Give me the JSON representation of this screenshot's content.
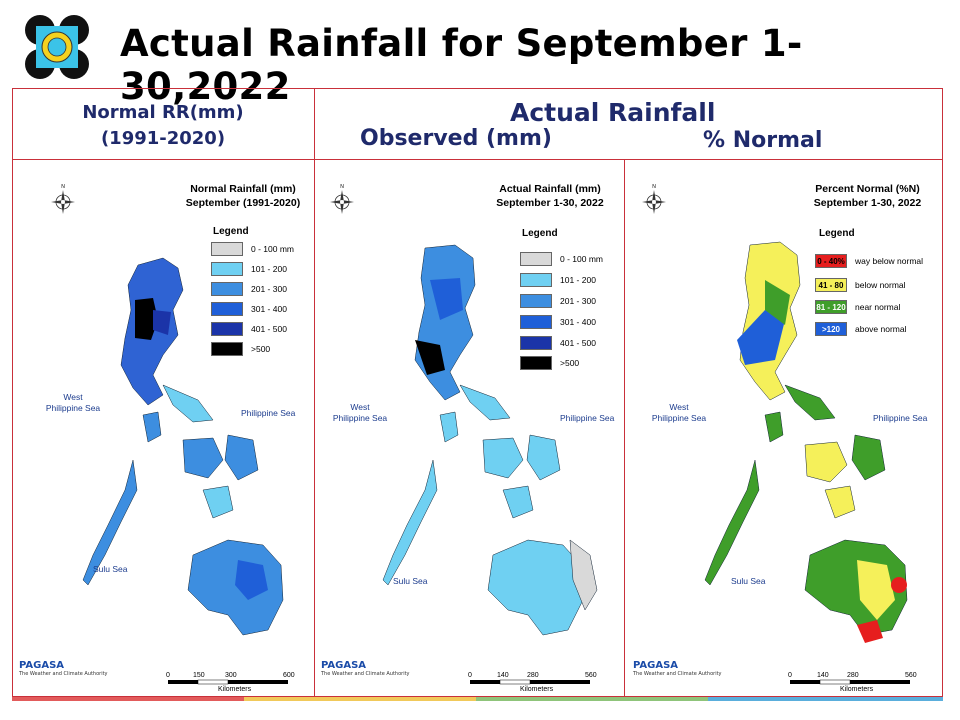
{
  "title": "Actual Rainfall for September 1-30,2022",
  "headers": {
    "normal_line1": "Normal RR(mm)",
    "normal_line2": "(1991-2020)",
    "actual": "Actual Rainfall",
    "observed": "Observed (mm)",
    "percent": "% Normal"
  },
  "maps": [
    {
      "title_line1": "Normal Rainfall (mm)",
      "title_line2": "September (1991-2020)",
      "legend_title": "Legend",
      "legend": [
        {
          "label": "0 - 100 mm",
          "color": "#d9d9d9"
        },
        {
          "label": "101 - 200",
          "color": "#6fd0f2"
        },
        {
          "label": "201 - 300",
          "color": "#3d8ee0"
        },
        {
          "label": "301 - 400",
          "color": "#1f5fd8"
        },
        {
          "label": "401 - 500",
          "color": "#1b34a8"
        },
        {
          "label": ">500",
          "color": "#000000"
        }
      ],
      "sea_west_line1": "West",
      "sea_west_line2": "Philippine Sea",
      "sea_east": "Philippine Sea",
      "sea_south": "Sulu Sea",
      "scale_ticks": [
        "0",
        "150",
        "300",
        "600"
      ],
      "scale_unit": "Kilometers"
    },
    {
      "title_line1": "Actual Rainfall (mm)",
      "title_line2": "September 1-30, 2022",
      "legend_title": "Legend",
      "legend": [
        {
          "label": "0 - 100 mm",
          "color": "#d9d9d9"
        },
        {
          "label": "101 - 200",
          "color": "#6fd0f2"
        },
        {
          "label": "201 - 300",
          "color": "#3d8ee0"
        },
        {
          "label": "301 - 400",
          "color": "#1f5fd8"
        },
        {
          "label": "401 - 500",
          "color": "#1b34a8"
        },
        {
          "label": ">500",
          "color": "#000000"
        }
      ],
      "sea_west_line1": "West",
      "sea_west_line2": "Philippine Sea",
      "sea_east": "Philippine Sea",
      "sea_south": "Sulu Sea",
      "scale_ticks": [
        "0",
        "140",
        "280",
        "560"
      ],
      "scale_unit": "Kilometers"
    },
    {
      "title_line1": "Percent Normal (%N)",
      "title_line2": "September 1-30, 2022",
      "legend_title": "Legend",
      "legend": [
        {
          "swatch": "0 - 40%",
          "label": "way below normal",
          "color": "#e61e1e"
        },
        {
          "swatch": "41 - 80",
          "label": "below normal",
          "color": "#f5f05a"
        },
        {
          "swatch": "81 - 120",
          "label": "near normal",
          "color": "#3f9e2a"
        },
        {
          "swatch": ">120",
          "label": "above normal",
          "color": "#1f5fd8"
        }
      ],
      "sea_west_line1": "West",
      "sea_west_line2": "Philippine Sea",
      "sea_east": "Philippine Sea",
      "sea_south": "Sulu Sea",
      "scale_ticks": [
        "0",
        "140",
        "280",
        "560"
      ],
      "scale_unit": "Kilometers"
    }
  ],
  "pagasa": {
    "name": "PAGASA",
    "tagline": "The Weather and Climate Authority"
  },
  "colors": {
    "header_text": "#1f2a6b",
    "frame": "#c9303a"
  }
}
